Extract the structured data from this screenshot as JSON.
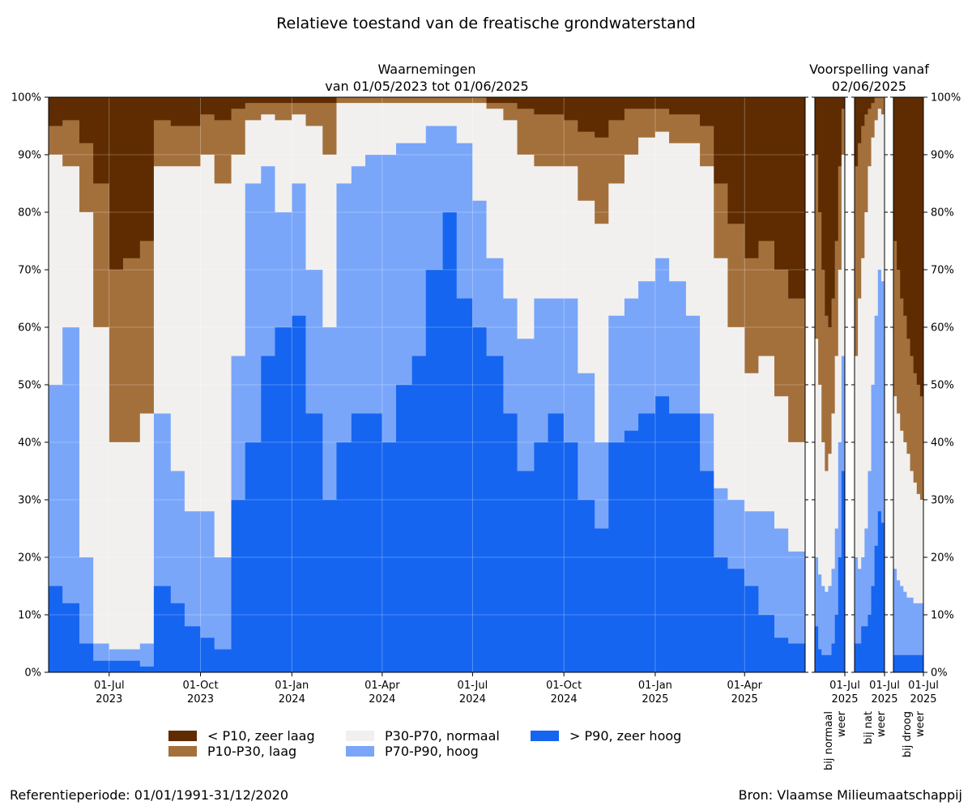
{
  "title": "Relatieve toestand van de freatische grondwaterstand",
  "footer": {
    "reference": "Referentieperiode: 01/01/1991-31/12/2020",
    "source": "Bron: Vlaamse Milieumaatschappij"
  },
  "colors": {
    "p10": "#5e2c00",
    "p10_p30": "#a3703c",
    "p30_p70": "#f2f0ee",
    "p70_p90": "#7aa6fa",
    "p90": "#1565f0"
  },
  "legend": [
    {
      "label": "< P10, zeer laag",
      "color_key": "p10"
    },
    {
      "label": "P10-P30, laag",
      "color_key": "p10_p30"
    },
    {
      "label": "P30-P70, normaal",
      "color_key": "p30_p70"
    },
    {
      "label": "P70-P90, hoog",
      "color_key": "p70_p90"
    },
    {
      "label": "> P90, zeer hoog",
      "color_key": "p90"
    }
  ],
  "chart_data": [
    {
      "type": "area",
      "title_line1": "Waarnemingen",
      "title_line2": "van 01/05/2023 tot 01/06/2025",
      "x_range": [
        "2023-05-01",
        "2025-06-01"
      ],
      "y_range": [
        0,
        100
      ],
      "y_ticks": [
        "0%",
        "10%",
        "20%",
        "30%",
        "40%",
        "50%",
        "60%",
        "70%",
        "80%",
        "90%",
        "100%"
      ],
      "x_ticks": [
        {
          "date": "2023-07-01",
          "line1": "01-Jul",
          "line2": "2023"
        },
        {
          "date": "2023-10-01",
          "line1": "01-Oct",
          "line2": "2023"
        },
        {
          "date": "2024-01-01",
          "line1": "01-Jan",
          "line2": "2024"
        },
        {
          "date": "2024-04-01",
          "line1": "01-Apr",
          "line2": "2024"
        },
        {
          "date": "2024-07-01",
          "line1": "01-Jul",
          "line2": "2024"
        },
        {
          "date": "2024-10-01",
          "line1": "01-Oct",
          "line2": "2024"
        },
        {
          "date": "2025-01-01",
          "line1": "01-Jan",
          "line2": "2025"
        },
        {
          "date": "2025-04-01",
          "line1": "01-Apr",
          "line2": "2025"
        }
      ],
      "grid": true,
      "stacked_cumulative": {
        "x": [
          "2023-05-01",
          "2023-05-15",
          "2023-06-01",
          "2023-06-15",
          "2023-07-01",
          "2023-07-15",
          "2023-08-01",
          "2023-08-15",
          "2023-09-01",
          "2023-09-15",
          "2023-10-01",
          "2023-10-15",
          "2023-11-01",
          "2023-11-15",
          "2023-12-01",
          "2023-12-15",
          "2024-01-01",
          "2024-01-15",
          "2024-02-01",
          "2024-02-15",
          "2024-03-01",
          "2024-03-15",
          "2024-04-01",
          "2024-04-15",
          "2024-05-01",
          "2024-05-15",
          "2024-06-01",
          "2024-06-15",
          "2024-07-01",
          "2024-07-15",
          "2024-08-01",
          "2024-08-15",
          "2024-09-01",
          "2024-09-15",
          "2024-10-01",
          "2024-10-15",
          "2024-11-01",
          "2024-11-15",
          "2024-12-01",
          "2024-12-15",
          "2025-01-01",
          "2025-01-15",
          "2025-02-01",
          "2025-02-15",
          "2025-03-01",
          "2025-03-15",
          "2025-04-01",
          "2025-04-15",
          "2025-05-01",
          "2025-05-15",
          "2025-06-01"
        ],
        "p90_top": [
          15,
          12,
          5,
          2,
          2,
          2,
          1,
          15,
          12,
          8,
          6,
          4,
          30,
          40,
          55,
          60,
          62,
          45,
          30,
          40,
          45,
          45,
          40,
          50,
          55,
          70,
          80,
          65,
          60,
          55,
          45,
          35,
          40,
          45,
          40,
          30,
          25,
          40,
          42,
          45,
          48,
          45,
          45,
          35,
          20,
          18,
          15,
          10,
          6,
          5,
          6
        ],
        "p70_p90_top": [
          50,
          60,
          20,
          5,
          4,
          4,
          5,
          45,
          35,
          28,
          28,
          20,
          55,
          85,
          88,
          80,
          85,
          70,
          60,
          85,
          88,
          90,
          90,
          92,
          92,
          95,
          95,
          92,
          82,
          72,
          65,
          58,
          65,
          65,
          65,
          52,
          40,
          62,
          65,
          68,
          72,
          68,
          62,
          45,
          32,
          30,
          28,
          28,
          25,
          21,
          22
        ],
        "p30_p70_top": [
          90,
          88,
          80,
          60,
          40,
          40,
          45,
          88,
          88,
          88,
          90,
          85,
          90,
          96,
          97,
          96,
          97,
          95,
          90,
          99,
          99,
          99,
          99,
          99,
          99,
          99,
          99,
          99,
          99,
          98,
          96,
          90,
          88,
          88,
          88,
          82,
          78,
          85,
          90,
          93,
          94,
          92,
          92,
          88,
          72,
          60,
          52,
          55,
          48,
          40,
          52
        ],
        "p10_p30_top": [
          95,
          96,
          92,
          85,
          70,
          72,
          75,
          96,
          95,
          95,
          97,
          96,
          98,
          99,
          99,
          99,
          99,
          99,
          99,
          100,
          100,
          100,
          100,
          100,
          100,
          100,
          100,
          100,
          100,
          99,
          99,
          98,
          97,
          97,
          96,
          94,
          93,
          96,
          98,
          98,
          98,
          97,
          97,
          95,
          85,
          78,
          72,
          75,
          70,
          65,
          75
        ]
      }
    },
    {
      "type": "area",
      "title_line1": "Voorspelling vanaf",
      "title_line2": "02/06/2025",
      "scenarios": [
        {
          "label_line1": "bij normaal",
          "label_line2": "weer",
          "x_tick_line1": "01-Jul",
          "x_tick_line2": "2025",
          "p90_top": [
            8,
            4,
            3,
            3,
            3,
            5,
            10,
            20,
            35
          ],
          "p70_p90_top": [
            20,
            17,
            15,
            14,
            15,
            18,
            25,
            40,
            55
          ],
          "p30_p70_top": [
            58,
            50,
            40,
            35,
            38,
            45,
            55,
            70,
            90
          ],
          "p10_p30_top": [
            90,
            80,
            70,
            62,
            60,
            65,
            75,
            88,
            98
          ]
        },
        {
          "label_line1": "bij nat",
          "label_line2": "weer",
          "x_tick_line1": "01-Jul",
          "x_tick_line2": "2025",
          "p90_top": [
            5,
            5,
            8,
            8,
            10,
            15,
            22,
            28,
            26
          ],
          "p70_p90_top": [
            20,
            18,
            20,
            25,
            35,
            50,
            62,
            70,
            68
          ],
          "p30_p70_top": [
            55,
            65,
            72,
            80,
            88,
            93,
            96,
            98,
            97
          ],
          "p10_p30_top": [
            88,
            92,
            95,
            97,
            98,
            99,
            100,
            100,
            100
          ]
        },
        {
          "label_line1": "bij droog",
          "label_line2": "weer",
          "x_tick_line1": "01-Jul",
          "x_tick_line2": "2025",
          "p90_top": [
            3,
            3,
            3,
            3,
            3,
            3,
            3,
            3,
            3
          ],
          "p70_p90_top": [
            18,
            16,
            15,
            14,
            13,
            13,
            12,
            12,
            12
          ],
          "p30_p70_top": [
            48,
            45,
            42,
            40,
            38,
            35,
            33,
            31,
            30
          ],
          "p10_p30_top": [
            75,
            70,
            65,
            62,
            58,
            55,
            52,
            50,
            48
          ]
        }
      ]
    }
  ]
}
